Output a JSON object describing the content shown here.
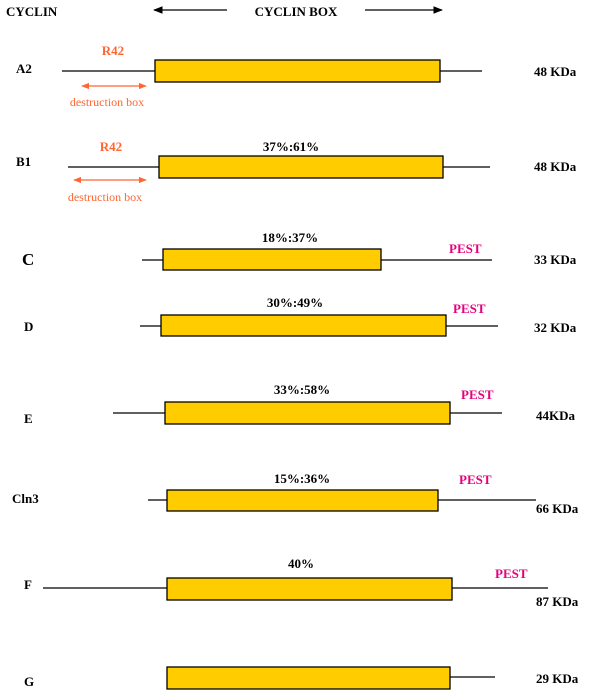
{
  "header": {
    "cyclin_label": "CYCLIN",
    "box_label": "CYCLIN BOX"
  },
  "colors": {
    "box_fill": "#FFCC00",
    "r42": "#FF6633",
    "pest": "#E6007E",
    "line": "#000000"
  },
  "proteins": [
    {
      "name": "A2",
      "mass": "48 KDa",
      "similarity": "",
      "r42": "R42",
      "destruction_box": "destruction box",
      "pest": ""
    },
    {
      "name": "B1",
      "mass": "48 KDa",
      "similarity": "37%:61%",
      "r42": "R42",
      "destruction_box": "destruction box",
      "pest": ""
    },
    {
      "name": "C",
      "mass": "33 KDa",
      "similarity": "18%:37%",
      "r42": "",
      "destruction_box": "",
      "pest": "PEST"
    },
    {
      "name": "D",
      "mass": "32 KDa",
      "similarity": "30%:49%",
      "r42": "",
      "destruction_box": "",
      "pest": "PEST"
    },
    {
      "name": "E",
      "mass": "44KDa",
      "similarity": "33%:58%",
      "r42": "",
      "destruction_box": "",
      "pest": "PEST"
    },
    {
      "name": "Cln3",
      "mass": "66 KDa",
      "similarity": "15%:36%",
      "r42": "",
      "destruction_box": "",
      "pest": "PEST"
    },
    {
      "name": "F",
      "mass": "87 KDa",
      "similarity": "40%",
      "r42": "",
      "destruction_box": "",
      "pest": "PEST"
    },
    {
      "name": "G",
      "mass": "29 KDa",
      "similarity": "",
      "r42": "",
      "destruction_box": "",
      "pest": ""
    }
  ]
}
